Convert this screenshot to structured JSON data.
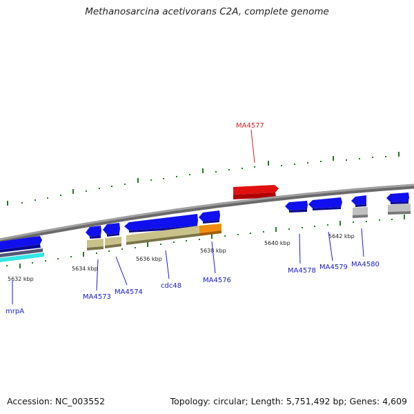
{
  "title": "Methanosarcina acetivorans C2A, complete genome",
  "footer": {
    "accession": "Accession: NC_003552",
    "summary": "Topology: circular; Length: 5,751,492 bp; Genes: 4,609"
  },
  "colors": {
    "backbone": "#808080",
    "tick": "#1f7a1f",
    "gene_forward": "#1010ee",
    "gene_highlight": "#e01010",
    "gene_orange": "#f28c0f",
    "gene_gray": "#c0c0c0",
    "cds_khaki": "#c8c28a",
    "cyan": "#33e5e5",
    "label_blue": "#1a1ad6",
    "label_red": "#d42020"
  },
  "ticks": [
    {
      "label": "5632 kbp"
    },
    {
      "label": "5634 kbp"
    },
    {
      "label": "5636 kbp"
    },
    {
      "label": "5638 kbp"
    },
    {
      "label": "5640 kbp"
    },
    {
      "label": "5642 kbp"
    }
  ],
  "genes": [
    {
      "name": "mrpA",
      "color": "blue"
    },
    {
      "name": "MA4573",
      "color": "blue"
    },
    {
      "name": "MA4574",
      "color": "blue"
    },
    {
      "name": "cdc48",
      "color": "blue"
    },
    {
      "name": "MA4576",
      "color": "blue"
    },
    {
      "name": "MA4577",
      "color": "red"
    },
    {
      "name": "MA4578",
      "color": "blue"
    },
    {
      "name": "MA4579",
      "color": "blue"
    },
    {
      "name": "MA4580",
      "color": "blue"
    }
  ]
}
